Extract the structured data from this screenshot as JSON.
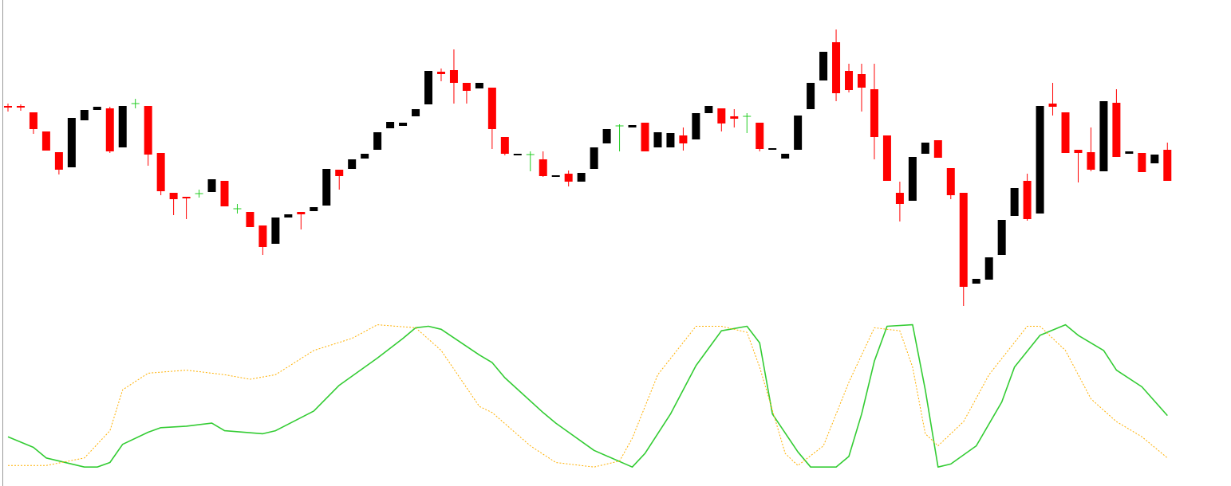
{
  "chart_data": [
    {
      "type": "candlestick",
      "open": [
        267,
        267,
        259,
        235,
        209,
        190,
        249,
        262,
        264,
        215,
        270,
        267,
        208,
        158,
        153,
        157,
        159,
        173,
        138,
        134,
        117,
        94,
        127,
        134,
        135,
        142,
        187,
        188,
        201,
        212,
        239,
        242,
        254,
        269,
        310,
        312,
        296,
        289,
        290,
        228,
        205,
        206,
        200,
        178,
        182,
        172,
        188,
        220,
        242,
        240,
        246,
        215,
        215,
        230,
        225,
        258,
        264,
        254,
        254,
        246,
        212,
        201,
        212,
        263,
        299,
        347,
        311,
        307,
        288,
        230,
        158,
        148,
        207,
        224,
        189,
        158,
        44,
        49,
        80,
        129,
        173,
        132,
        270,
        259,
        212,
        209,
        185,
        271,
        207,
        208,
        195,
        212
      ],
      "high": [
        270,
        269,
        259,
        235,
        209,
        252,
        262,
        266,
        266,
        267,
        276,
        267,
        208,
        158,
        153,
        162,
        175,
        173,
        144,
        134,
        117,
        127,
        131,
        134,
        140,
        188,
        187,
        200,
        207,
        234,
        247,
        246,
        263,
        311,
        314,
        338,
        296,
        296,
        290,
        228,
        207,
        210,
        210,
        180,
        186,
        183,
        215,
        238,
        244,
        243,
        246,
        234,
        233,
        240,
        258,
        267,
        264,
        263,
        258,
        246,
        214,
        207,
        255,
        296,
        335,
        363,
        320,
        320,
        320,
        230,
        172,
        203,
        221,
        224,
        189,
        158,
        50,
        77,
        124,
        164,
        182,
        267,
        296,
        259,
        212,
        240,
        273,
        288,
        210,
        208,
        206,
        221
      ],
      "low": [
        260,
        261,
        232,
        211,
        181,
        190,
        249,
        262,
        208,
        215,
        264,
        192,
        155,
        130,
        125,
        152,
        159,
        141,
        132,
        115,
        80,
        94,
        127,
        112,
        135,
        142,
        162,
        188,
        201,
        212,
        239,
        242,
        254,
        269,
        298,
        270,
        270,
        289,
        213,
        205,
        205,
        185,
        178,
        178,
        166,
        172,
        188,
        220,
        210,
        240,
        210,
        215,
        215,
        211,
        225,
        258,
        235,
        240,
        233,
        210,
        212,
        201,
        212,
        263,
        299,
        273,
        284,
        260,
        200,
        173,
        122,
        148,
        207,
        202,
        150,
        16,
        44,
        49,
        80,
        129,
        123,
        132,
        255,
        208,
        171,
        185,
        185,
        203,
        207,
        184,
        195,
        173
      ],
      "close": [
        265,
        265,
        238,
        211,
        187,
        252,
        262,
        266,
        210,
        267,
        270,
        206,
        160,
        150,
        151,
        157,
        175,
        141,
        138,
        115,
        90,
        127,
        131,
        131,
        140,
        188,
        179,
        200,
        207,
        234,
        247,
        246,
        263,
        311,
        307,
        296,
        286,
        296,
        238,
        207,
        207,
        206,
        179,
        180,
        172,
        183,
        215,
        238,
        242,
        243,
        210,
        234,
        233,
        220,
        258,
        267,
        245,
        251,
        254,
        213,
        214,
        207,
        255,
        296,
        335,
        283,
        287,
        290,
        228,
        173,
        144,
        203,
        221,
        202,
        155,
        40,
        50,
        77,
        124,
        164,
        125,
        267,
        266,
        208,
        208,
        187,
        273,
        203,
        210,
        184,
        206,
        173
      ],
      "up_color": "#000000",
      "down_color": "#ff0000",
      "flat_color": "#22cc22",
      "ylim": [
        0,
        400
      ]
    },
    {
      "type": "line",
      "xlim": [
        0,
        91
      ],
      "ylim": [
        0,
        100
      ],
      "series": [
        {
          "color": "#33cc33",
          "style": "solid",
          "x": [
            0,
            2,
            3,
            6,
            7,
            8,
            9,
            11,
            12,
            14,
            16,
            17,
            20,
            21,
            24,
            26,
            29,
            31,
            32,
            33,
            34,
            37,
            38,
            39,
            42,
            43,
            46,
            49,
            50,
            52,
            54,
            56,
            58,
            59,
            60,
            62,
            63,
            64,
            65,
            66,
            67,
            68,
            69,
            71,
            72,
            73,
            74,
            76,
            78,
            79,
            81,
            83,
            84,
            86,
            87,
            89,
            91
          ],
          "values": [
            22,
            15,
            8,
            2,
            2,
            5,
            17,
            25,
            28,
            29,
            31,
            26,
            24,
            26,
            39,
            56,
            74,
            87,
            94,
            95,
            93,
            76,
            71,
            61,
            38,
            31,
            13,
            2,
            11,
            37,
            69,
            92,
            95,
            84,
            37,
            12,
            2,
            2,
            2,
            9,
            37,
            72,
            95,
            96,
            53,
            2,
            4,
            16,
            45,
            68,
            89,
            96,
            89,
            79,
            66,
            55,
            36
          ]
        },
        {
          "color": "#ffb000",
          "style": "dotted",
          "x": [
            0,
            3,
            6,
            8,
            9,
            11,
            14,
            17,
            19,
            21,
            24,
            27,
            29,
            32,
            34,
            37,
            38,
            41,
            43,
            46,
            48,
            49,
            51,
            54,
            56,
            58,
            59,
            61,
            62,
            64,
            66,
            68,
            70,
            71,
            72,
            73,
            75,
            77,
            80,
            81,
            83,
            85,
            87,
            89,
            91
          ],
          "values": [
            3,
            3,
            8,
            26,
            53,
            64,
            66,
            63,
            60,
            63,
            79,
            87,
            96,
            94,
            79,
            42,
            38,
            16,
            5,
            2,
            6,
            21,
            63,
            95,
            95,
            91,
            68,
            11,
            3,
            16,
            58,
            94,
            92,
            68,
            24,
            16,
            32,
            63,
            95,
            95,
            79,
            47,
            32,
            22,
            8
          ]
        }
      ]
    }
  ]
}
